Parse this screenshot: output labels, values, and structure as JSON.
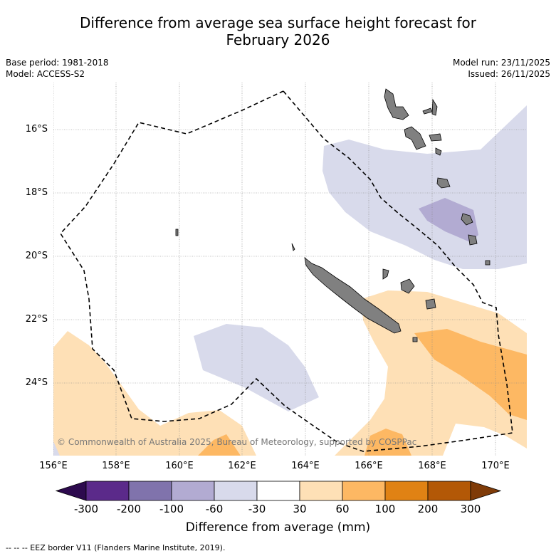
{
  "title_line1": "Difference from average sea surface height forecast for",
  "title_line2": "February 2026",
  "base_period": "Base period: 1981-2018",
  "model": "Model: ACCESS-S2",
  "model_run": "Model run: 23/11/2025",
  "issued": "Issued: 26/11/2025",
  "latitude_labels": [
    "16°S",
    "18°S",
    "20°S",
    "22°S",
    "24°S"
  ],
  "longitude_labels": [
    "156°E",
    "158°E",
    "160°E",
    "162°E",
    "164°E",
    "166°E",
    "168°E",
    "170°E"
  ],
  "copyright": "© Commonwealth of Australia 2025, Bureau of Meteorology, supported by COSPPac",
  "colorbar": {
    "ticks": [
      "-300",
      "-200",
      "-100",
      "-60",
      "-30",
      "30",
      "60",
      "100",
      "200",
      "300"
    ],
    "colors": [
      "#2d0a4e",
      "#5b2a8a",
      "#8073ac",
      "#b2abd2",
      "#d8daeb",
      "#ffffff",
      "#fee0b6",
      "#fdb863",
      "#e08214",
      "#b35806",
      "#7f3b08"
    ],
    "label": "Difference from average (mm)"
  },
  "footnote": "-- -- -- EEZ border V11 (Flanders Marine Institute, 2019).",
  "colors": {
    "land": "#808080",
    "eez_line": "#000000",
    "grid": "#888888"
  }
}
